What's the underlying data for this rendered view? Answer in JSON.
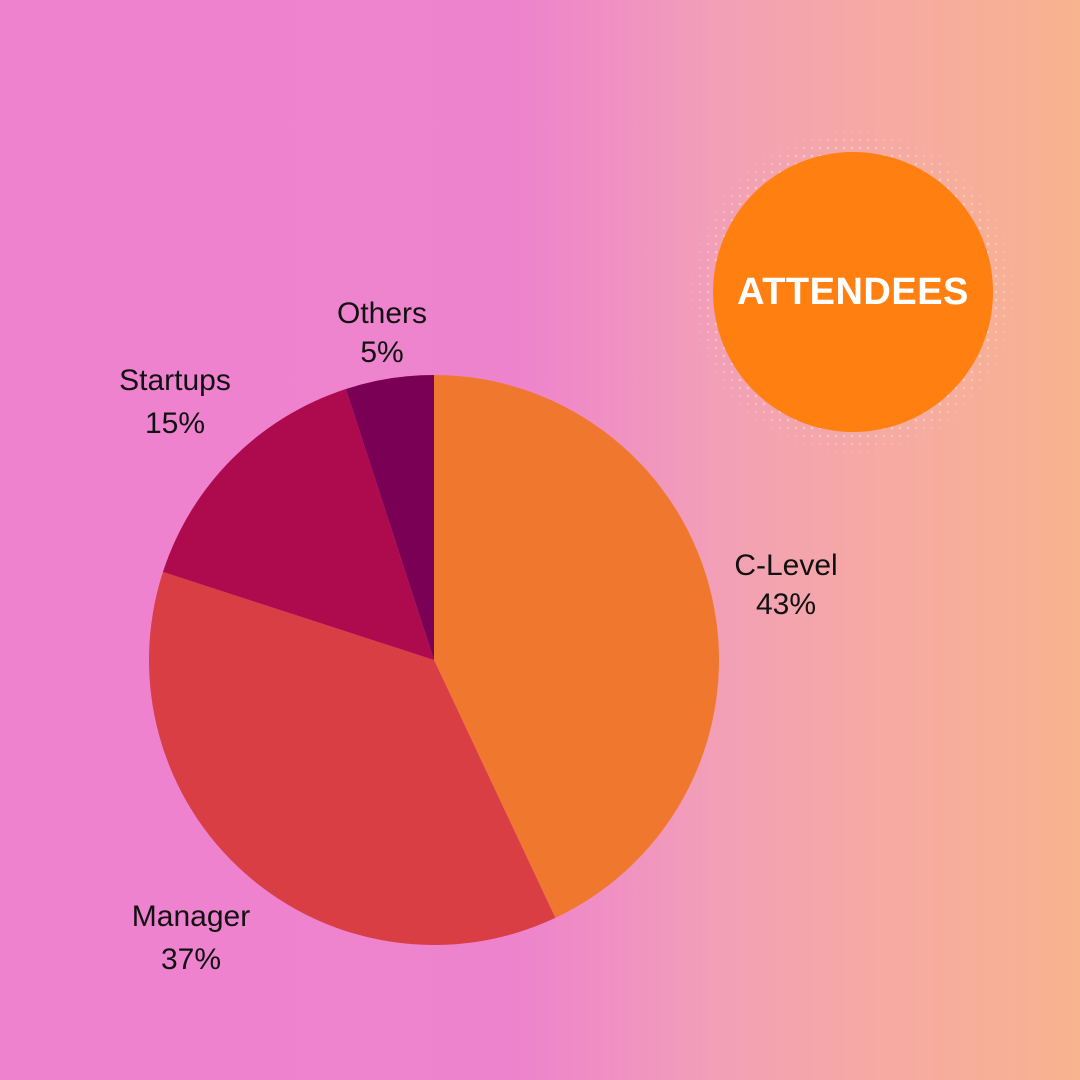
{
  "chart_data": {
    "type": "pie",
    "title": "ATTENDEES",
    "slices": [
      {
        "label": "C-Level",
        "value": 43,
        "value_label": "43%",
        "color": "#f0782e"
      },
      {
        "label": "Manager",
        "value": 37,
        "value_label": "37%",
        "color": "#d83e43"
      },
      {
        "label": "Startups",
        "value": 15,
        "value_label": "15%",
        "color": "#ae0b4e"
      },
      {
        "label": "Others",
        "value": 5,
        "value_label": "5%",
        "color": "#7a0055"
      }
    ],
    "start": "12 o'clock",
    "direction": "clockwise",
    "legend": "none"
  },
  "theme": {
    "badge_color": "#ff8010",
    "badge_text_color": "#ffffff",
    "label_color": "#111111"
  }
}
